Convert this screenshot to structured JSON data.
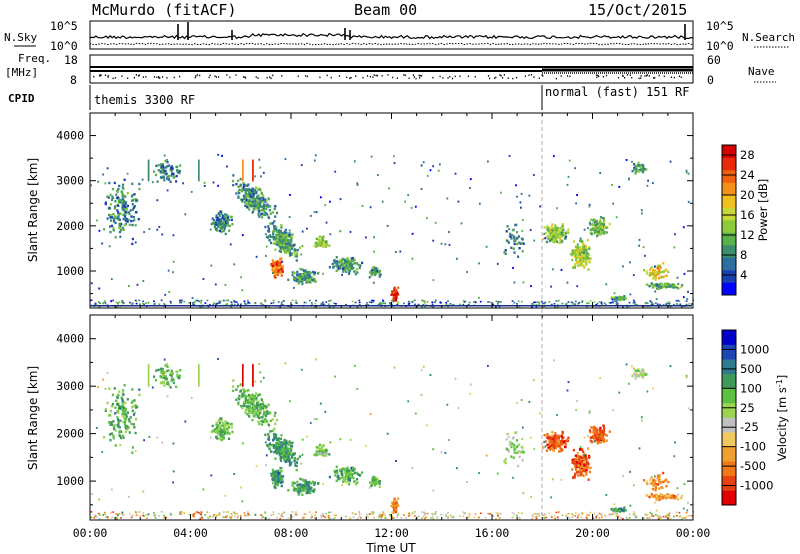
{
  "header": {
    "station": "McMurdo (fitACF)",
    "beam": "Beam 00",
    "date": "15/Oct/2015"
  },
  "aux_panels": {
    "nsky_label": "N.Sky",
    "nsearch_label": "N.Search",
    "freq_label_line1": "Freq.",
    "freq_label_line2": "[MHz]",
    "nave_label": "Nave",
    "cpid_label": "CPID",
    "noise_ticks": [
      "10^5",
      "10^0"
    ],
    "freq_ticks": [
      "18",
      "8"
    ],
    "nave_ticks": [
      "60",
      "0"
    ],
    "modes": [
      {
        "label": "themis 3300 RF",
        "start_hour": 0,
        "end_hour": 18
      },
      {
        "label": "normal (fast) 151 RF",
        "start_hour": 18,
        "end_hour": 24
      }
    ]
  },
  "chart_data": [
    {
      "type": "heatmap",
      "panel": "power",
      "ylabel": "Slant Range [km]",
      "ylim": [
        180,
        4500
      ],
      "yticks": [
        1000,
        2000,
        3000,
        4000
      ],
      "xlim_hours": [
        0,
        24
      ],
      "colorbar": {
        "label": "Power [dB]",
        "ticks": [
          4,
          8,
          12,
          16,
          20,
          24,
          28
        ],
        "range": [
          0,
          30
        ],
        "colors": [
          "#0000ff",
          "#1a3fb0",
          "#2f6fa0",
          "#3c8f6a",
          "#5ab04a",
          "#8ccc3a",
          "#c8d838",
          "#f0c020",
          "#f59018",
          "#f06010",
          "#e82a0a",
          "#d60000"
        ]
      }
    },
    {
      "type": "heatmap",
      "panel": "velocity",
      "ylabel": "Slant Range [km]",
      "ylim": [
        180,
        4500
      ],
      "yticks": [
        1000,
        2000,
        3000,
        4000
      ],
      "xlim_hours": [
        0,
        24
      ],
      "colorbar": {
        "label": "Velocity [m s^-1]",
        "ticks": [
          "1000",
          "500",
          "100",
          "25",
          "-25",
          "-100",
          "-500",
          "-1000"
        ],
        "colors": [
          "#0000c8",
          "#1e46b4",
          "#2f7a8f",
          "#3f9a5a",
          "#5cc040",
          "#9ad450",
          "#c0c0c0",
          "#f0c860",
          "#f0a030",
          "#f07818",
          "#e84010",
          "#e00000"
        ]
      }
    }
  ],
  "time_axis": {
    "xlabel": "Time UT",
    "ticks": [
      "00:00",
      "04:00",
      "08:00",
      "12:00",
      "16:00",
      "20:00",
      "00:00"
    ]
  }
}
